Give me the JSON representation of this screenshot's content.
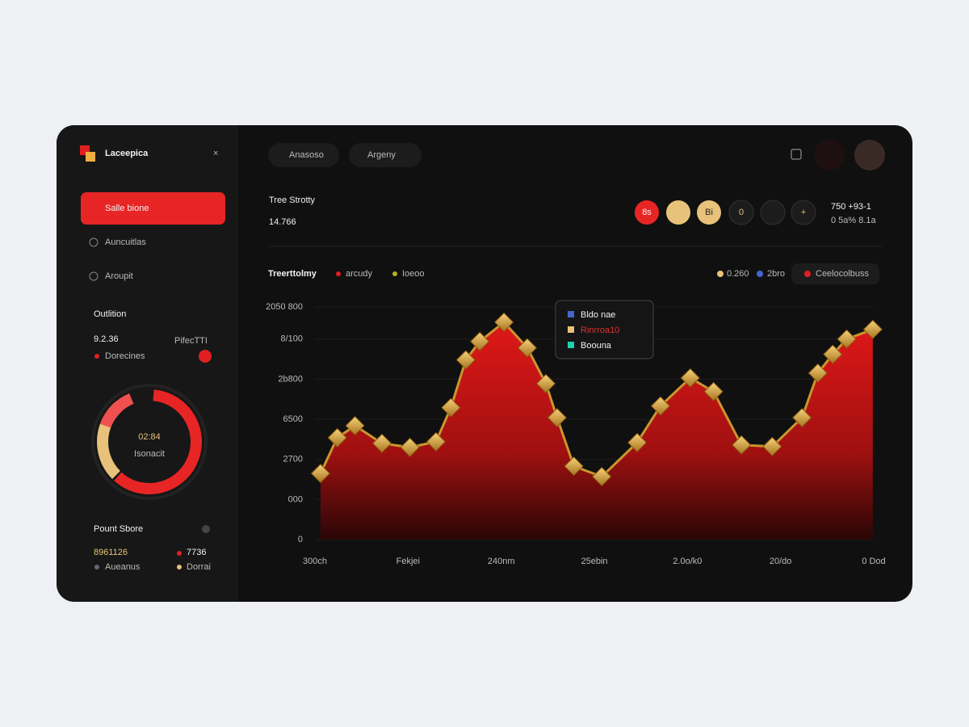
{
  "sidebar": {
    "logo": "Laceepica",
    "nav": [
      "Salle bione",
      "Auncuitlas",
      "Aroupit"
    ],
    "stat": {
      "label": "Outlition",
      "value": "9.2.36",
      "legend": "Dorecines",
      "tag": "PifecTTI"
    },
    "donut": {
      "value": "02:84",
      "label": "Isonacit"
    },
    "points": {
      "title": "Pount Sbore",
      "value1": "8961126",
      "label1": "Aueanus",
      "value2": "7736",
      "label2": "Dorrai"
    }
  },
  "topbar": {
    "tabs": [
      "Anasoso",
      "Argeny"
    ]
  },
  "summary": {
    "title": "Tree Strotty",
    "value": "14.766",
    "buttons": [
      "8s",
      "Bi",
      "0"
    ],
    "right_value": "750 +93-1",
    "right_sub": "0 5a% 8.1a"
  },
  "chart_data": {
    "type": "area",
    "title": "Treerttolmy",
    "legend": [
      "arcudy",
      "Ioeoo"
    ],
    "right_legend": [
      "0.260",
      "2bro"
    ],
    "filter": "Ceelocolbuss",
    "tooltip": [
      "Bldo nae",
      "Rinrroa10",
      "Boouna"
    ],
    "color": "#e01818",
    "line_color": "#c8962e",
    "x": [
      0.06,
      0.24,
      0.43,
      0.72,
      1.02,
      1.3,
      1.46,
      1.62,
      1.77,
      2.03,
      2.28,
      2.48,
      2.6,
      2.78,
      3.08,
      3.46,
      3.71,
      4.03,
      4.28,
      4.58,
      4.91,
      5.23,
      5.4,
      5.56,
      5.71,
      5.99
    ],
    "values": [
      1650,
      2540,
      2840,
      2400,
      2300,
      2440,
      3290,
      4480,
      4940,
      5420,
      4780,
      3890,
      3040,
      1830,
      1570,
      2420,
      3330,
      4030,
      3690,
      2360,
      2320,
      3040,
      4150,
      4620,
      5000,
      5240
    ],
    "xlim": [
      0,
      6
    ],
    "xticks": [
      {
        "value": 0,
        "label": "300ch"
      },
      {
        "value": 1,
        "label": "Fekjei"
      },
      {
        "value": 2,
        "label": "240nm"
      },
      {
        "value": 3,
        "label": "25ebin"
      },
      {
        "value": 4,
        "label": "2.0o/k0"
      },
      {
        "value": 5,
        "label": "20/do"
      },
      {
        "value": 6,
        "label": "0 Dod"
      }
    ],
    "ylim": [
      0,
      5800
    ],
    "yticks": [
      0,
      {
        "value": 1000,
        "label": "000"
      },
      {
        "value": 2000,
        "label": "2700"
      },
      {
        "value": 3000,
        "label": "6500"
      },
      {
        "value": 4000,
        "label": "2b800"
      },
      {
        "value": 5000,
        "label": "8/100"
      },
      {
        "value": 5800,
        "label": "2050 800"
      }
    ],
    "grid": true
  }
}
